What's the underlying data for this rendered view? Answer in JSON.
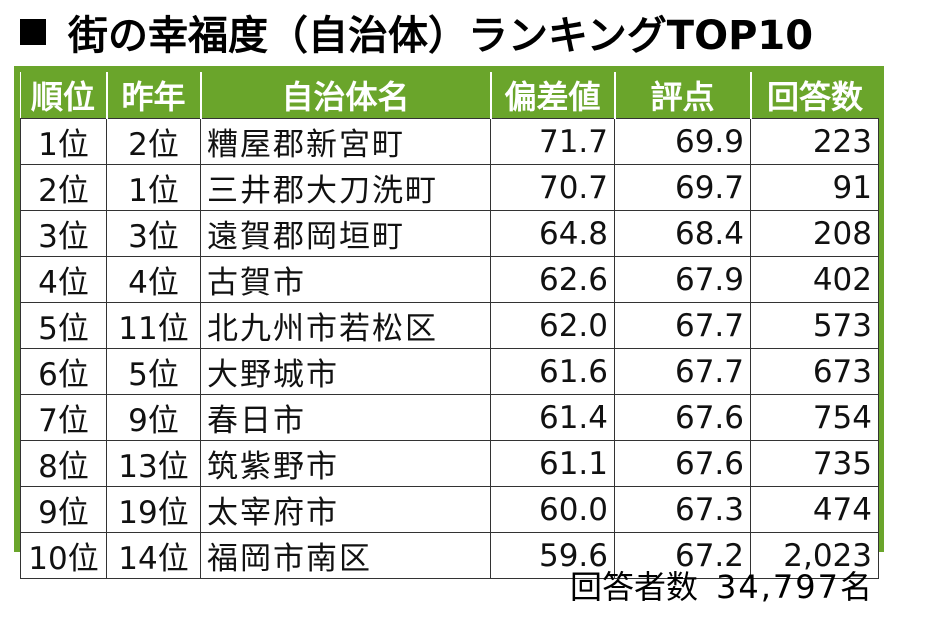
{
  "title": "街の幸福度（自治体）ランキングTOP10",
  "title_icon": "black-square-icon",
  "colors": {
    "header_bg": "#6aa52b",
    "header_text": "#ffffff"
  },
  "table": {
    "headers": [
      "順位",
      "昨年",
      "自治体名",
      "偏差値",
      "評点",
      "回答数"
    ],
    "rows": [
      [
        "1位",
        "2位",
        "糟屋郡新宮町",
        "71.7",
        "69.9",
        "223"
      ],
      [
        "2位",
        "1位",
        "三井郡大刀洗町",
        "70.7",
        "69.7",
        "91"
      ],
      [
        "3位",
        "3位",
        "遠賀郡岡垣町",
        "64.8",
        "68.4",
        "208"
      ],
      [
        "4位",
        "4位",
        "古賀市",
        "62.6",
        "67.9",
        "402"
      ],
      [
        "5位",
        "11位",
        "北九州市若松区",
        "62.0",
        "67.7",
        "573"
      ],
      [
        "6位",
        "5位",
        "大野城市",
        "61.6",
        "67.7",
        "673"
      ],
      [
        "7位",
        "9位",
        "春日市",
        "61.4",
        "67.6",
        "754"
      ],
      [
        "8位",
        "13位",
        "筑紫野市",
        "61.1",
        "67.6",
        "735"
      ],
      [
        "9位",
        "19位",
        "太宰府市",
        "60.0",
        "67.3",
        "474"
      ],
      [
        "10位",
        "14位",
        "福岡市南区",
        "59.6",
        "67.2",
        "2,023"
      ]
    ]
  },
  "footer": {
    "label": "回答者数",
    "value": "34,797名"
  }
}
